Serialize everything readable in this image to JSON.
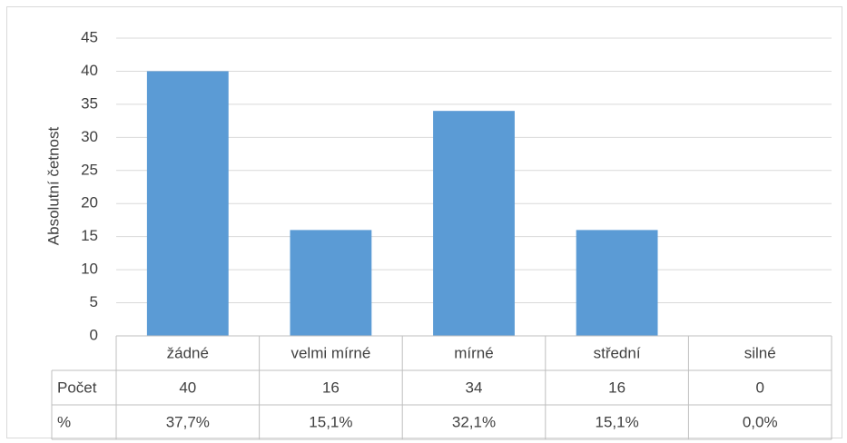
{
  "chart_data": {
    "type": "bar",
    "y_axis_label": "Absolutní četnost",
    "categories": [
      "žádné",
      "velmi mírné",
      "mírné",
      "střední",
      "silné"
    ],
    "values": [
      40,
      16,
      34,
      16,
      0
    ],
    "color": "#5b9bd5",
    "ylim": [
      0,
      45
    ],
    "yticks": [
      0,
      5,
      10,
      15,
      20,
      25,
      30,
      35,
      40,
      45
    ],
    "grid": true,
    "table_row_labels": [
      "Počet",
      "%"
    ],
    "percent_labels": [
      "37,7%",
      "15,1%",
      "32,1%",
      "15,1%",
      "0,0%"
    ]
  }
}
